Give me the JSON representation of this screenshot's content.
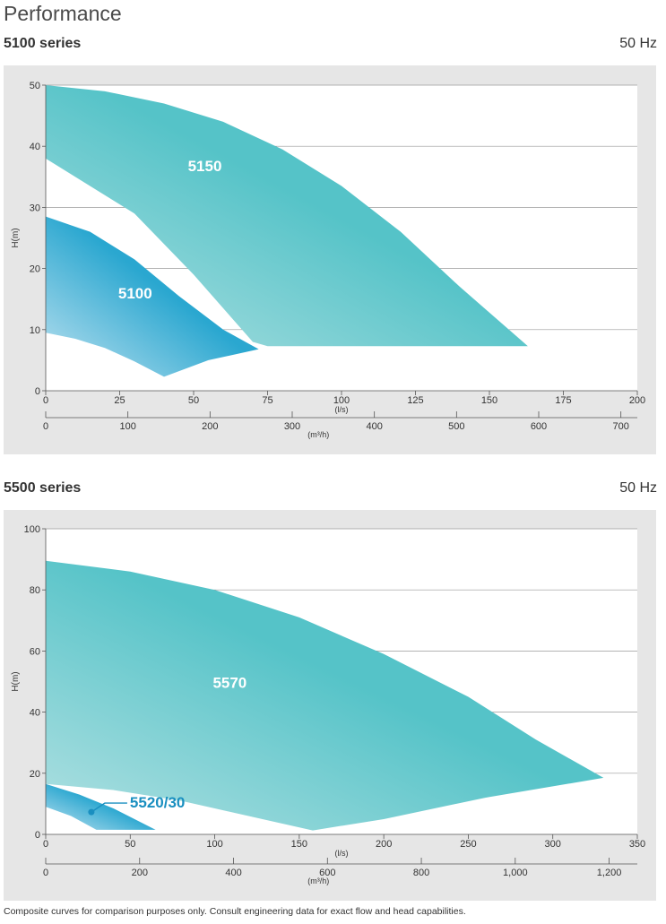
{
  "page": {
    "title": "Performance",
    "footnote": "Composite curves for comparison purposes only. Consult engineering data for exact flow and head capabilities."
  },
  "colors": {
    "panel_bg": "#e6e6e6",
    "plot_bg": "#ffffff",
    "teal": "#55c3c8",
    "teal_light": "#b2e1e2",
    "blue": "#2aa7d0",
    "blue_light": "#bfe2f0",
    "label_dark": "#1a8fc0"
  },
  "charts": [
    {
      "series_title": "5100 series",
      "frequency": "50  Hz"
    },
    {
      "series_title": "5500 series",
      "frequency": "50 Hz"
    }
  ],
  "chart_data": [
    {
      "type": "area",
      "title": "5100 series",
      "subtitle": "50  Hz",
      "ylabel": "H(m)",
      "xlabel": "(l/s)",
      "x2label": "(m³/h)",
      "ylim": [
        0,
        50
      ],
      "xlim": [
        0,
        200
      ],
      "x2lim": [
        0,
        720
      ],
      "yticks": [
        "0",
        "10",
        "20",
        "30",
        "40",
        "50"
      ],
      "xticks": [
        "0",
        "25",
        "50",
        "75",
        "100",
        "125",
        "150",
        "175",
        "200"
      ],
      "x2ticks": [
        "0",
        "100",
        "200",
        "300",
        "400",
        "500",
        "600",
        "700"
      ],
      "grid": true,
      "series": [
        {
          "name": "5150",
          "color": "teal",
          "upper": [
            [
              0,
              50
            ],
            [
              20,
              49
            ],
            [
              40,
              47
            ],
            [
              60,
              44
            ],
            [
              80,
              39.5
            ],
            [
              100,
              33.5
            ],
            [
              120,
              26
            ],
            [
              140,
              17
            ],
            [
              163,
              7.3
            ]
          ],
          "lower": [
            [
              0,
              38
            ],
            [
              30,
              29
            ],
            [
              50,
              19
            ],
            [
              70,
              8
            ],
            [
              75,
              7.3
            ],
            [
              163,
              7.3
            ]
          ]
        },
        {
          "name": "5100",
          "color": "blue",
          "upper": [
            [
              0,
              28.5
            ],
            [
              15,
              26
            ],
            [
              30,
              21.5
            ],
            [
              45,
              15.5
            ],
            [
              60,
              10
            ],
            [
              72,
              6.8
            ]
          ],
          "lower": [
            [
              0,
              9.5
            ],
            [
              10,
              8.5
            ],
            [
              20,
              7
            ],
            [
              30,
              4.8
            ],
            [
              40,
              2.3
            ],
            [
              55,
              5
            ],
            [
              72,
              6.8
            ]
          ]
        }
      ]
    },
    {
      "type": "area",
      "title": "5500 series",
      "subtitle": "50 Hz",
      "ylabel": "H(m)",
      "xlabel": "(l/s)",
      "x2label": "(m³/h)",
      "ylim": [
        0,
        100
      ],
      "xlim": [
        0,
        350
      ],
      "x2lim": [
        0,
        1260
      ],
      "yticks": [
        "0",
        "20",
        "40",
        "60",
        "80",
        "100"
      ],
      "xticks": [
        "0",
        "50",
        "100",
        "150",
        "200",
        "250",
        "300",
        "350"
      ],
      "x2ticks": [
        "0",
        "200",
        "400",
        "600",
        "800",
        "1,000",
        "1,200"
      ],
      "grid": true,
      "series": [
        {
          "name": "5570",
          "color": "teal",
          "upper": [
            [
              0,
              89.5
            ],
            [
              50,
              86
            ],
            [
              100,
              80
            ],
            [
              150,
              71
            ],
            [
              200,
              59
            ],
            [
              250,
              45
            ],
            [
              290,
              31
            ],
            [
              330,
              18.5
            ]
          ],
          "lower": [
            [
              0,
              16.5
            ],
            [
              40,
              14.5
            ],
            [
              80,
              11
            ],
            [
              120,
              6
            ],
            [
              158,
              1.3
            ],
            [
              200,
              5
            ],
            [
              260,
              12
            ],
            [
              330,
              18.5
            ]
          ]
        },
        {
          "name": "5520/30",
          "color": "blue",
          "upper": [
            [
              0,
              16.5
            ],
            [
              20,
              13
            ],
            [
              40,
              8.5
            ],
            [
              65,
              1.5
            ]
          ],
          "lower": [
            [
              0,
              9
            ],
            [
              15,
              6
            ],
            [
              30,
              1.5
            ],
            [
              65,
              1.5
            ]
          ]
        }
      ],
      "annotation": {
        "text": "5520/30",
        "point": [
          27,
          7.3
        ]
      }
    }
  ]
}
